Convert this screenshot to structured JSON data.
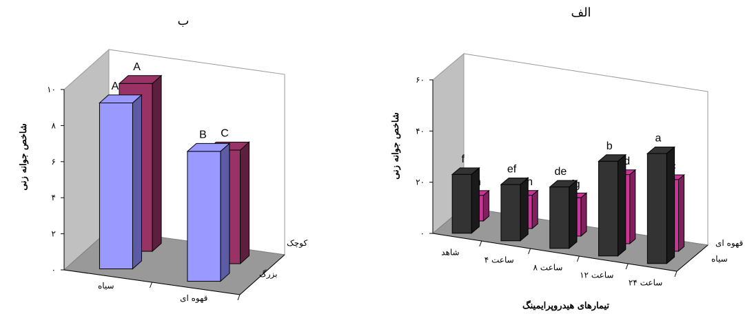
{
  "chart_data": [
    {
      "type": "bar",
      "title": "ب",
      "ylabel": "شاخص جوانه زنی",
      "xlabel": "",
      "ylim": [
        0,
        10
      ],
      "yticks": [
        "۰",
        "۲",
        "۴",
        "۶",
        "۸",
        "۱۰"
      ],
      "categories": [
        "سیاه",
        "قهوه ای"
      ],
      "series": [
        {
          "name": "بزرگ",
          "values": [
            9.2,
            7.2
          ],
          "letters": [
            "A",
            "B"
          ]
        },
        {
          "name": "کوچک",
          "values": [
            9.3,
            6.3
          ],
          "letters": [
            "A",
            "C"
          ]
        }
      ],
      "colors": {
        "front_face": "#9999ff",
        "front_side": "#5c5ca6",
        "back_face": "#993366",
        "back_side": "#5c1f3d"
      }
    },
    {
      "type": "bar",
      "title": "الف",
      "ylabel": "شاخص جوانه زنی",
      "xlabel": "تیمارهای هیدروپرایمینگ",
      "ylim": [
        0,
        60
      ],
      "yticks": [
        "۰",
        "۲۰",
        "۴۰",
        "۶۰"
      ],
      "categories": [
        "شاهد",
        "۴ ساعت",
        "۸ ساعت",
        "۱۲ ساعت",
        "۲۴ ساعت"
      ],
      "series": [
        {
          "name": "سیاه",
          "values": [
            23,
            22,
            24,
            37,
            43
          ],
          "letters": [
            "f",
            "ef",
            "de",
            "b",
            "a"
          ]
        },
        {
          "name": "قهوه ای",
          "values": [
            10,
            13,
            15,
            27,
            28
          ],
          "letters": [
            "h",
            "gh",
            "fg",
            "cd",
            "c"
          ]
        }
      ],
      "colors": {
        "front_face": "#333333",
        "front_side": "#1a1a1a",
        "back_face": "#cc3399",
        "back_side": "#80205f"
      }
    }
  ]
}
